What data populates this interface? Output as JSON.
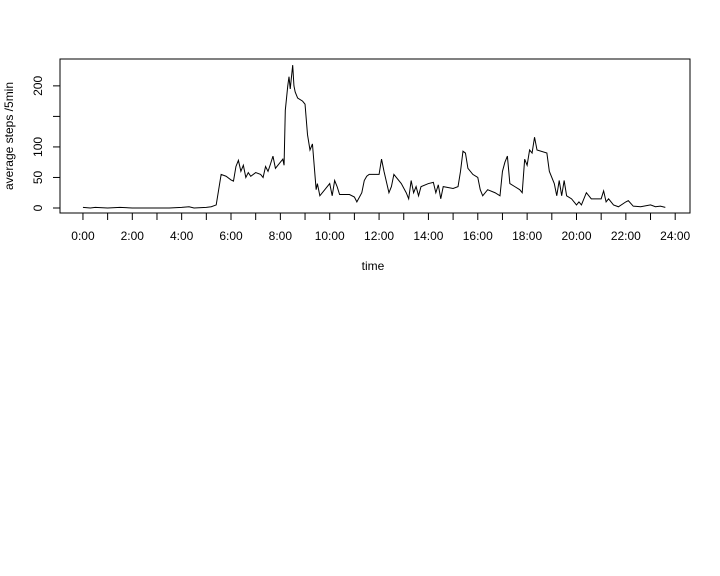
{
  "chart_data": {
    "type": "line",
    "xlabel": "time",
    "ylabel": "average steps /5min",
    "x": [
      0,
      0.3,
      0.5,
      1.0,
      1.5,
      2.0,
      3.0,
      3.5,
      4.0,
      4.3,
      4.5,
      5.0,
      5.2,
      5.4,
      5.5,
      5.6,
      5.8,
      6.0,
      6.1,
      6.2,
      6.3,
      6.4,
      6.5,
      6.6,
      6.7,
      6.8,
      7.0,
      7.2,
      7.3,
      7.4,
      7.5,
      7.6,
      7.7,
      7.8,
      8.0,
      8.1,
      8.15,
      8.2,
      8.3,
      8.35,
      8.4,
      8.5,
      8.55,
      8.6,
      8.7,
      8.9,
      9.0,
      9.1,
      9.2,
      9.3,
      9.4,
      9.45,
      9.5,
      9.6,
      9.8,
      10.0,
      10.1,
      10.2,
      10.3,
      10.4,
      10.8,
      11.0,
      11.1,
      11.3,
      11.4,
      11.5,
      11.6,
      12.0,
      12.1,
      12.2,
      12.4,
      12.5,
      12.6,
      12.9,
      13.1,
      13.2,
      13.3,
      13.4,
      13.5,
      13.6,
      13.7,
      14.0,
      14.2,
      14.3,
      14.4,
      14.5,
      14.6,
      15.0,
      15.2,
      15.3,
      15.4,
      15.5,
      15.6,
      15.8,
      16.0,
      16.1,
      16.2,
      16.4,
      16.7,
      16.9,
      17.0,
      17.1,
      17.2,
      17.3,
      17.5,
      17.7,
      17.8,
      17.9,
      18.0,
      18.1,
      18.2,
      18.3,
      18.4,
      18.8,
      18.9,
      19.1,
      19.2,
      19.3,
      19.4,
      19.5,
      19.6,
      19.8,
      20.0,
      20.1,
      20.2,
      20.4,
      20.6,
      21.0,
      21.1,
      21.2,
      21.3,
      21.5,
      21.7,
      22.0,
      22.1,
      22.3,
      22.6,
      23.0,
      23.2,
      23.4,
      23.6
    ],
    "series": [
      {
        "color": "#000000",
        "values": [
          1,
          0,
          1,
          0,
          1,
          0,
          0,
          0,
          1,
          2,
          0,
          1,
          2,
          5,
          30,
          55,
          52,
          46,
          44,
          68,
          78,
          60,
          70,
          50,
          58,
          52,
          58,
          55,
          50,
          68,
          60,
          72,
          85,
          65,
          75,
          80,
          70,
          160,
          200,
          215,
          195,
          234,
          200,
          190,
          180,
          175,
          170,
          120,
          95,
          105,
          55,
          30,
          40,
          20,
          30,
          40,
          20,
          45,
          35,
          22,
          22,
          18,
          10,
          25,
          45,
          52,
          55,
          55,
          80,
          60,
          25,
          35,
          55,
          40,
          25,
          15,
          45,
          25,
          35,
          20,
          35,
          40,
          42,
          25,
          38,
          15,
          35,
          32,
          35,
          60,
          93,
          90,
          65,
          55,
          50,
          30,
          20,
          30,
          25,
          20,
          60,
          75,
          85,
          40,
          35,
          30,
          25,
          80,
          70,
          95,
          90,
          116,
          95,
          90,
          60,
          40,
          20,
          45,
          20,
          45,
          20,
          15,
          5,
          10,
          5,
          25,
          15,
          15,
          28,
          10,
          15,
          5,
          2,
          10,
          12,
          3,
          2,
          5,
          2,
          3,
          1
        ]
      }
    ],
    "xlim": [
      -0.93,
      24.6
    ],
    "ylim": [
      -8.2,
      244
    ],
    "xticks": [
      {
        "value": 0,
        "label": "0:00"
      },
      {
        "value": 2,
        "label": "2:00"
      },
      {
        "value": 4,
        "label": "4:00"
      },
      {
        "value": 6,
        "label": "6:00"
      },
      {
        "value": 8,
        "label": "8:00"
      },
      {
        "value": 10,
        "label": "10:00"
      },
      {
        "value": 12,
        "label": "12:00"
      },
      {
        "value": 14,
        "label": "14:00"
      },
      {
        "value": 16,
        "label": "16:00"
      },
      {
        "value": 18,
        "label": "18:00"
      },
      {
        "value": 20,
        "label": "20:00"
      },
      {
        "value": 22,
        "label": "22:00"
      },
      {
        "value": 24,
        "label": "24:00"
      }
    ],
    "xminorticks": [
      1,
      3,
      5,
      7,
      9,
      11,
      13,
      15,
      17,
      19,
      21,
      23
    ],
    "yticks": [
      0,
      50,
      100,
      200
    ],
    "yminorticks": [
      150
    ]
  }
}
